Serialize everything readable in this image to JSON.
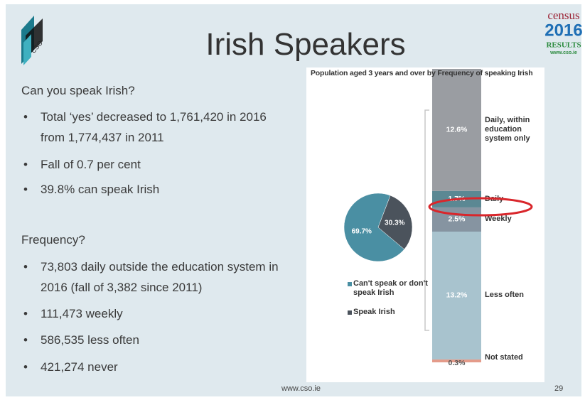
{
  "header": {
    "title": "Irish Speakers"
  },
  "logo": {
    "census": "census",
    "year": "2016",
    "results": "RESULTS",
    "url": "www.cso.ie",
    "cso": "CSO"
  },
  "left": {
    "heading1": "Can you speak Irish?",
    "bullets1": [
      "Total ‘yes’ decreased to 1,761,420 in 2016 from 1,774,437 in 2011",
      "Fall of 0.7 per cent",
      "39.8% can speak Irish"
    ],
    "heading2": "Frequency?",
    "bullets2": [
      "73,803 daily outside the education system in 2016 (fall of 3,382 since 2011)",
      "111,473 weekly",
      "586,535 less often",
      "421,274 never"
    ]
  },
  "footer": {
    "url": "www.cso.ie",
    "page": "29"
  },
  "chart_data": [
    {
      "type": "pie",
      "categories": [
        "Can't speak or don't speak Irish",
        "Speak Irish"
      ],
      "values": [
        69.7,
        30.3
      ],
      "value_labels": [
        "69.7%",
        "30.3%"
      ],
      "colors": [
        "#4a8fa3",
        "#4b535c"
      ],
      "legend": "bottom"
    },
    {
      "type": "stacked_bar",
      "title": "Population aged 3 years and over by Frequency of speaking Irish",
      "categories": [
        "Not stated",
        "Less often",
        "Weekly",
        "Daily",
        "Daily, within education system  only"
      ],
      "values": [
        0.3,
        13.2,
        2.5,
        1.7,
        12.6
      ],
      "value_labels": [
        "0.3%",
        "13.2%",
        "2.5%",
        "1.7%",
        "12.6%"
      ],
      "colors": [
        "#e49b8a",
        "#a8c3ce",
        "#8694a1",
        "#5b8893",
        "#9a9da2"
      ]
    }
  ]
}
